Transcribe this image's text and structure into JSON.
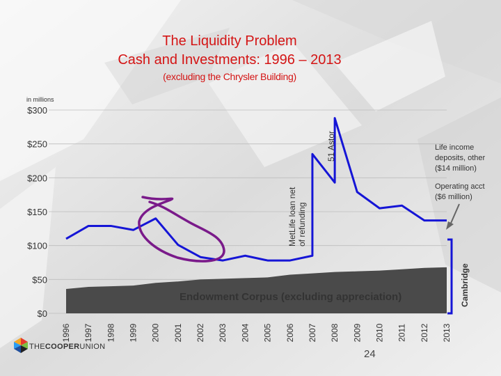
{
  "title": {
    "line1": "The Liquidity Problem",
    "line2": "Cash and Investments: 1996 – 2013",
    "line3": "(excluding the Chrysler Building)"
  },
  "units_label": "in millions",
  "chart_data": {
    "type": "line",
    "x": [
      "1996",
      "1997",
      "1998",
      "1999",
      "2000",
      "2001",
      "2002",
      "2003",
      "2004",
      "2005",
      "2006",
      "2007",
      "2008",
      "2009",
      "2010",
      "2011",
      "2012",
      "2013"
    ],
    "ylim": [
      0,
      300
    ],
    "yticks": [
      0,
      50,
      100,
      150,
      200,
      250,
      300
    ],
    "ytick_labels": [
      "$0",
      "$50",
      "$100",
      "$150",
      "$200",
      "$250",
      "$300"
    ],
    "grid": true,
    "series": [
      {
        "type": "line",
        "color": "#1515d6",
        "points": [
          [
            1996,
            110
          ],
          [
            1997,
            129
          ],
          [
            1998,
            129
          ],
          [
            1999,
            123
          ],
          [
            2000,
            140
          ],
          [
            2001,
            101
          ],
          [
            2002,
            83
          ],
          [
            2003,
            78
          ],
          [
            2004,
            85
          ],
          [
            2005,
            78
          ],
          [
            2006,
            78
          ],
          [
            2007,
            85
          ],
          [
            2007,
            235
          ],
          [
            2008,
            193
          ],
          [
            2008,
            288
          ],
          [
            2009,
            179
          ],
          [
            2010,
            155
          ],
          [
            2011,
            159
          ],
          [
            2012,
            137
          ],
          [
            2013,
            137
          ]
        ]
      },
      {
        "type": "area",
        "color": "#4a4a4a",
        "values": [
          36,
          39,
          40,
          41,
          45,
          47,
          50,
          51,
          52,
          53,
          57,
          59,
          61,
          62,
          63,
          65,
          67,
          68
        ]
      }
    ],
    "annotations": {
      "endowment": "Endowment Corpus (excluding appreciation)",
      "metlife": [
        "MetLife loan net",
        "of refunding"
      ],
      "astor": "51 Astor",
      "life_income": [
        "Life income",
        "deposits, other",
        "($14 million)"
      ],
      "operating": [
        "Operating acct",
        "($6 million)"
      ],
      "cambridge": "Cambridge"
    }
  },
  "footer": {
    "logo_text_a": "THE",
    "logo_text_b": "COOPER",
    "logo_text_c": "UNION",
    "page_number": "24"
  },
  "colors": {
    "title": "#d41414",
    "line": "#1515d6",
    "area": "#4a4a4a",
    "marker": "#7a1a8a"
  }
}
